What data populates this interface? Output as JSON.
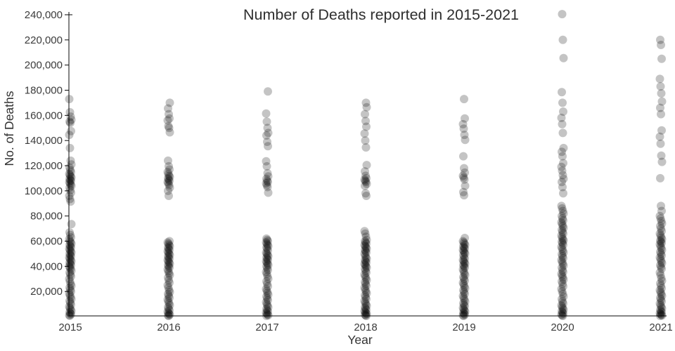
{
  "chart_data": {
    "type": "scatter",
    "title": "Number of Deaths reported in 2015-2021",
    "xlabel": "Year",
    "ylabel": "No. of Deaths",
    "legend_position": "none",
    "grid": false,
    "categories": [
      "2015",
      "2016",
      "2017",
      "2018",
      "2019",
      "2020",
      "2021"
    ],
    "ylim": [
      0,
      243000
    ],
    "yticks": [
      {
        "v": 20000,
        "label": "20,000"
      },
      {
        "v": 40000,
        "label": "40,000"
      },
      {
        "v": 60000,
        "label": "60,000"
      },
      {
        "v": 80000,
        "label": "80,000"
      },
      {
        "v": 100000,
        "label": "100,000"
      },
      {
        "v": 120000,
        "label": "120,000"
      },
      {
        "v": 140000,
        "label": "140,000"
      },
      {
        "v": 160000,
        "label": "160,000"
      },
      {
        "v": 180000,
        "label": "180,000"
      },
      {
        "v": 200000,
        "label": "200,000"
      },
      {
        "v": 220000,
        "label": "220,000"
      },
      {
        "v": 240000,
        "label": "240,000"
      }
    ],
    "marker": {
      "shape": "circle",
      "radius": 6,
      "color": "#000000",
      "opacity": 0.23
    },
    "series": [
      {
        "name": "2015",
        "values": [
          173000,
          162500,
          159000,
          156500,
          155000,
          154000,
          147500,
          144500,
          134000,
          124000,
          121000,
          118500,
          116500,
          115000,
          113500,
          112500,
          111500,
          110500,
          109500,
          108500,
          108000,
          107000,
          106000,
          105000,
          104000,
          102500,
          100500,
          98500,
          96000,
          93500,
          91500,
          73500,
          67000,
          65000,
          63000,
          61500,
          60000,
          59000,
          58000,
          57000,
          56000,
          55000,
          54000,
          53000,
          52000,
          51000,
          50000,
          49000,
          48000,
          47000,
          46000,
          45000,
          44000,
          43000,
          42000,
          41000,
          40000,
          39000,
          38000,
          36500,
          35000,
          33500,
          32000,
          30000,
          28000,
          26000,
          24500,
          23000,
          21500,
          20000,
          18500,
          17000,
          15500,
          14000,
          12500,
          11000,
          9500,
          8000,
          6800,
          5600,
          4500,
          3500,
          2600,
          1800,
          1100,
          700
        ]
      },
      {
        "name": "2016",
        "values": [
          170000,
          165500,
          161000,
          157500,
          156000,
          151500,
          150000,
          146500,
          124000,
          119500,
          117000,
          115000,
          113500,
          112000,
          111000,
          110000,
          109000,
          108000,
          107000,
          106000,
          104500,
          102500,
          100000,
          96000,
          60000,
          59000,
          58000,
          57000,
          56000,
          55000,
          54000,
          53000,
          52000,
          51000,
          50000,
          49000,
          48000,
          47000,
          46000,
          45000,
          44000,
          43000,
          42000,
          41000,
          40000,
          39000,
          37500,
          36000,
          34500,
          33000,
          31000,
          29000,
          27000,
          25000,
          23000,
          21000,
          19500,
          18000,
          16500,
          15000,
          13500,
          12000,
          10500,
          9000,
          7500,
          6200,
          5000,
          4000,
          3000,
          2200,
          1500,
          900,
          600
        ]
      },
      {
        "name": "2017",
        "values": [
          179000,
          161500,
          155000,
          150000,
          146000,
          144000,
          139000,
          135500,
          123500,
          119500,
          114000,
          111500,
          109500,
          108000,
          107000,
          106000,
          104500,
          103000,
          98500,
          62000,
          61000,
          60000,
          59000,
          58000,
          57000,
          56000,
          55000,
          54000,
          52500,
          51000,
          50000,
          49000,
          48000,
          47000,
          46000,
          45000,
          44000,
          43000,
          42000,
          41000,
          40000,
          38500,
          37000,
          35500,
          34000,
          32000,
          30000,
          28000,
          26000,
          24000,
          22000,
          20500,
          19000,
          17500,
          16000,
          14500,
          13000,
          11500,
          10000,
          8700,
          7400,
          6200,
          5100,
          4100,
          3200,
          2400,
          1700,
          1100,
          650
        ]
      },
      {
        "name": "2018",
        "values": [
          170000,
          166500,
          161000,
          155500,
          151000,
          145500,
          140000,
          134500,
          120500,
          115500,
          112000,
          110000,
          109000,
          108000,
          107000,
          105500,
          104000,
          98000,
          96000,
          68000,
          66000,
          63500,
          61000,
          60000,
          59000,
          58000,
          57000,
          56000,
          55000,
          54000,
          53000,
          52000,
          51000,
          50000,
          48500,
          47000,
          46000,
          45000,
          44000,
          43000,
          42000,
          41000,
          40000,
          39000,
          38000,
          36500,
          35000,
          33500,
          32000,
          30500,
          29000,
          27500,
          26000,
          24500,
          23000,
          21500,
          20000,
          18500,
          17000,
          15500,
          14000,
          12500,
          11000,
          9800,
          8600,
          7500,
          6400,
          5400,
          4500,
          3600,
          2800,
          2100,
          1500,
          1000,
          600
        ]
      },
      {
        "name": "2019",
        "values": [
          173000,
          157500,
          153000,
          149500,
          144500,
          140500,
          127500,
          118000,
          114500,
          112000,
          110500,
          109000,
          104000,
          99000,
          96500,
          62500,
          60000,
          59000,
          58000,
          57000,
          56000,
          55000,
          54000,
          53000,
          52000,
          51000,
          50000,
          49000,
          47500,
          46000,
          45000,
          44000,
          43000,
          42000,
          41000,
          40000,
          39000,
          37500,
          36000,
          34500,
          33000,
          31500,
          30000,
          28500,
          27000,
          25500,
          24000,
          22500,
          21000,
          19500,
          18000,
          16500,
          15000,
          13500,
          12000,
          10700,
          9400,
          8200,
          7000,
          5900,
          4900,
          4000,
          3100,
          2300,
          1600,
          1000,
          600
        ]
      },
      {
        "name": "2020",
        "values": [
          240500,
          220000,
          205500,
          178500,
          170000,
          163000,
          158000,
          153000,
          146000,
          134000,
          131000,
          127500,
          122000,
          119000,
          116000,
          112500,
          109500,
          107000,
          103000,
          98000,
          88000,
          86000,
          84000,
          82000,
          80000,
          78000,
          76500,
          75000,
          73500,
          72000,
          70500,
          69000,
          67500,
          66000,
          64500,
          63000,
          61500,
          60500,
          59500,
          58500,
          57000,
          55500,
          54000,
          52500,
          51000,
          49500,
          48000,
          46500,
          45000,
          43500,
          42000,
          40500,
          39000,
          37000,
          35500,
          34000,
          32500,
          31000,
          29500,
          28000,
          26000,
          24000,
          22000,
          20000,
          18000,
          16000,
          14000,
          12000,
          10500,
          9000,
          7700,
          6500,
          5400,
          4400,
          3400,
          2500,
          1700,
          1000,
          600
        ]
      },
      {
        "name": "2021",
        "values": [
          220000,
          216000,
          205000,
          189000,
          183000,
          177500,
          171000,
          166000,
          161000,
          148000,
          143000,
          137500,
          128000,
          123000,
          110000,
          88000,
          84000,
          80000,
          78000,
          76000,
          74000,
          72000,
          70000,
          68000,
          66000,
          64500,
          63000,
          61500,
          60500,
          59500,
          58500,
          57500,
          56000,
          54500,
          53000,
          51500,
          50000,
          48500,
          47000,
          45500,
          44000,
          42500,
          41000,
          39500,
          38000,
          35000,
          33000,
          30500,
          28500,
          26500,
          24500,
          22500,
          21000,
          19500,
          18000,
          16500,
          15000,
          13500,
          12000,
          10500,
          9000,
          7700,
          6500,
          5400,
          4400,
          3500,
          2700,
          2000,
          1400,
          900,
          600
        ]
      }
    ]
  },
  "colors": {
    "background": "#ffffff",
    "axis": "#0a0a0a",
    "tick_text": "#3b3b3b",
    "title_text": "#2e2e2e"
  }
}
